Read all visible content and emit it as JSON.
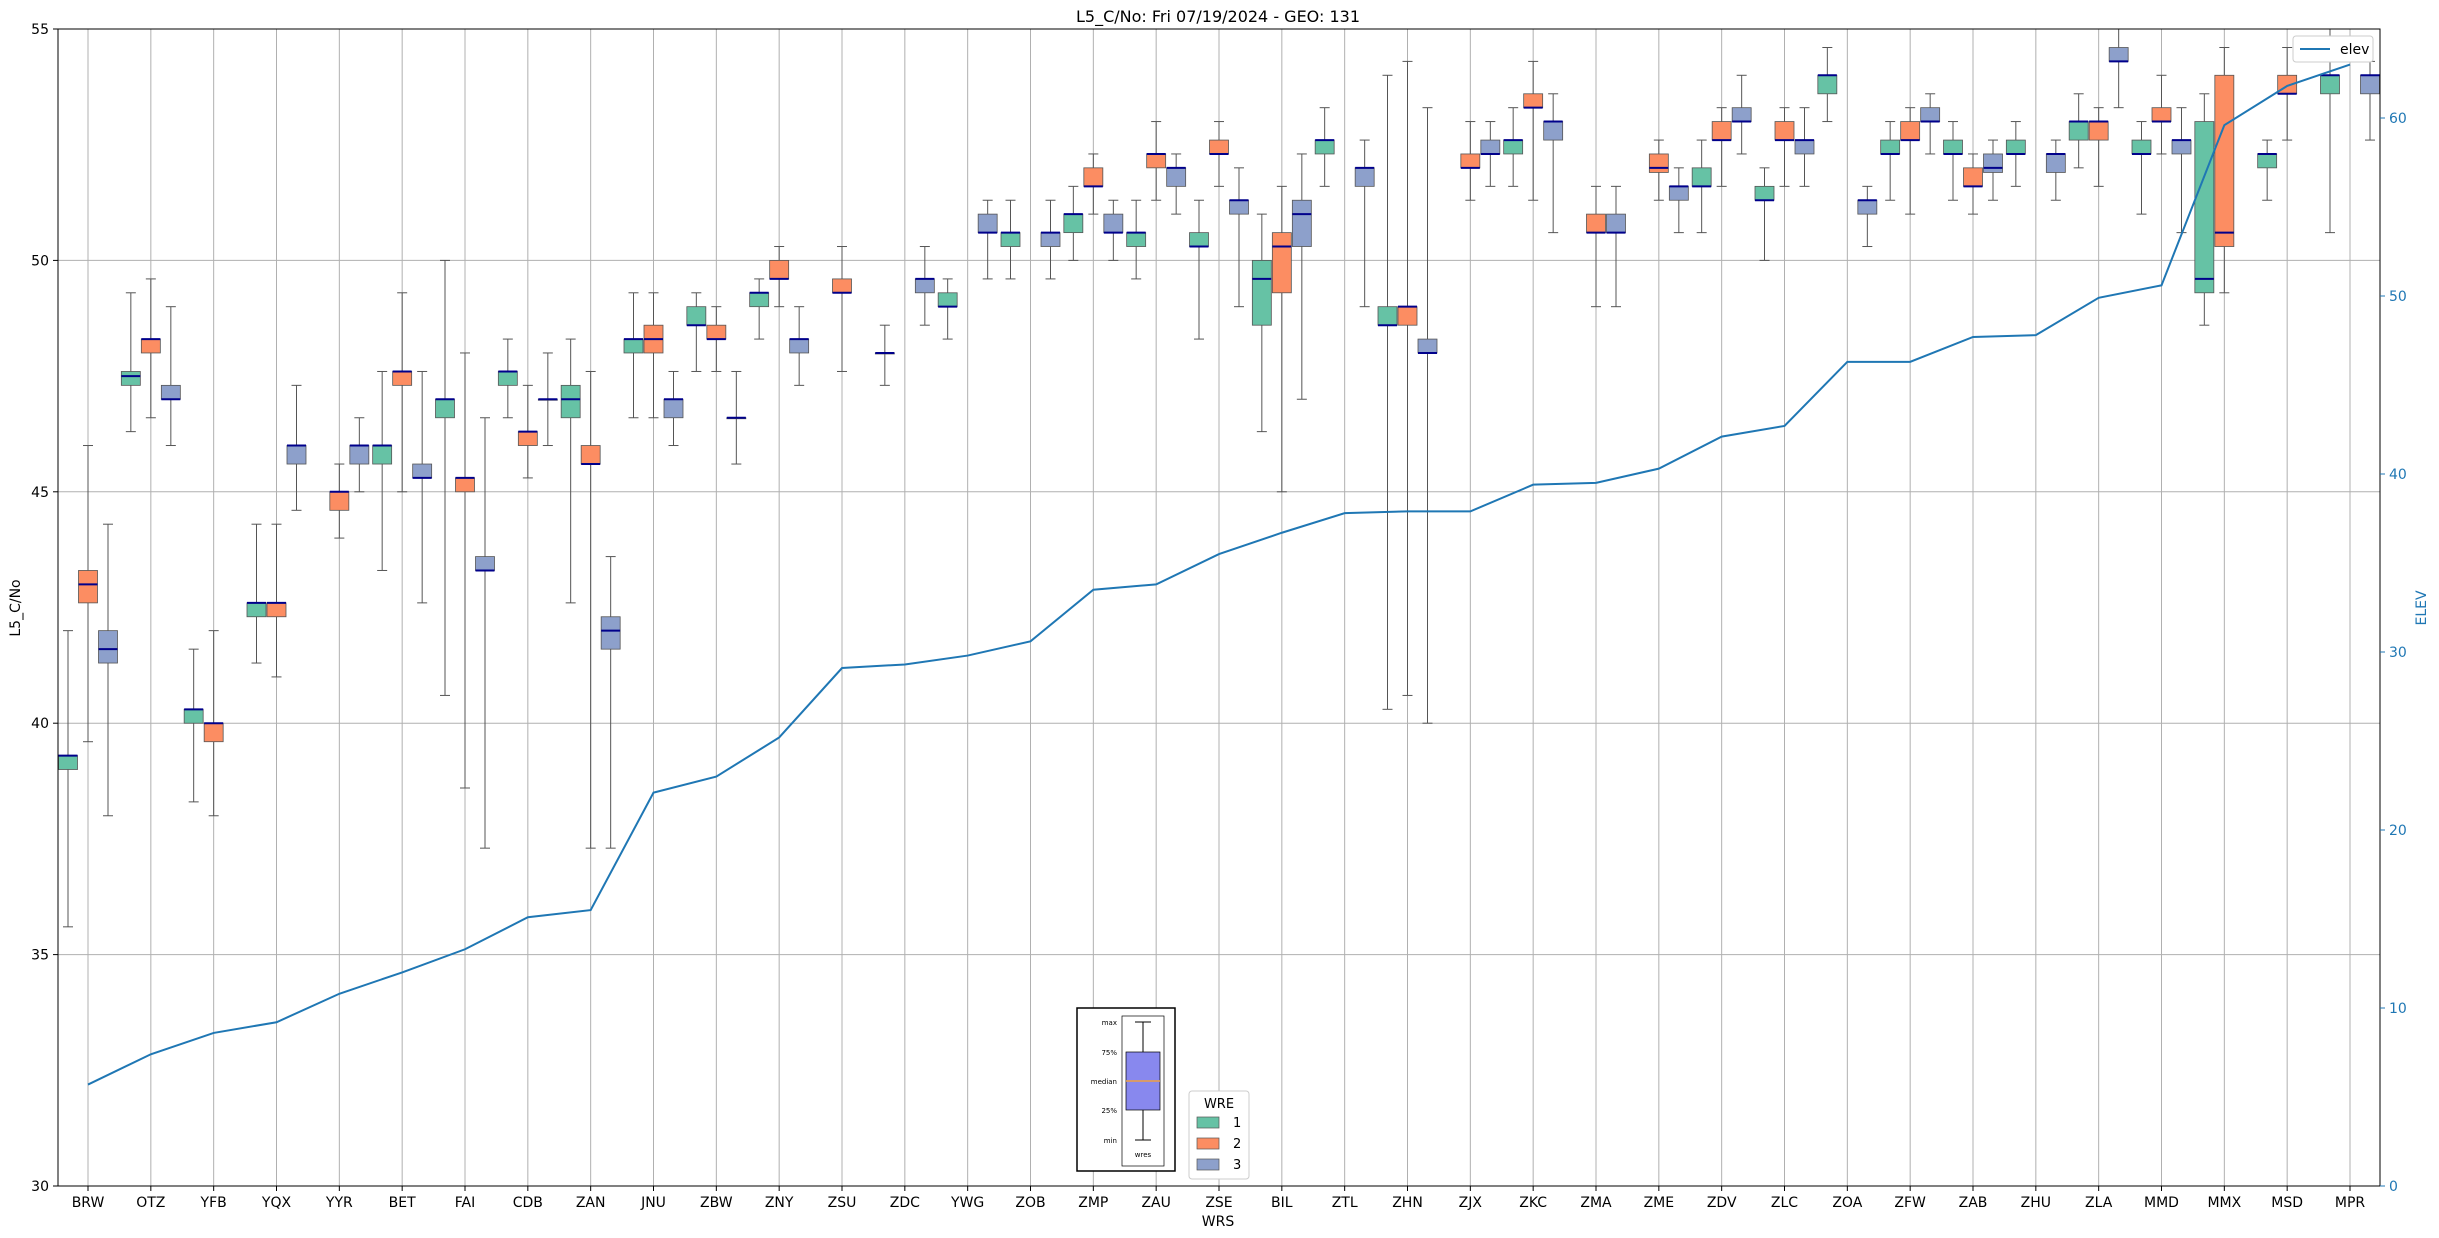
{
  "chart_data": {
    "type": "box",
    "title": "L5_C/No: Fri 07/19/2024 - GEO: 131",
    "xlabel": "WRS",
    "ylabel": "L5_C/No",
    "ylabel_right": "ELEV",
    "ylim": [
      30,
      55
    ],
    "ylim_right": [
      0,
      65
    ],
    "yticks": [
      "30",
      "35",
      "40",
      "45",
      "50",
      "55"
    ],
    "yticks_right": [
      "0",
      "10",
      "20",
      "30",
      "40",
      "50",
      "60"
    ],
    "grid": true,
    "colors": {
      "1": "#66c2a5",
      "2": "#fc8d62",
      "3": "#8da0cb",
      "elev": "#1f77b4",
      "median": "#00008b"
    },
    "categories": [
      "BRW",
      "OTZ",
      "YFB",
      "YQX",
      "YYR",
      "BET",
      "FAI",
      "CDB",
      "ZAN",
      "JNU",
      "ZBW",
      "ZNY",
      "ZSU",
      "ZDC",
      "YWG",
      "ZOB",
      "ZMP",
      "ZAU",
      "ZSE",
      "BIL",
      "ZTL",
      "ZHN",
      "ZJX",
      "ZKC",
      "ZMA",
      "ZME",
      "ZDV",
      "ZLC",
      "ZOA",
      "ZFW",
      "ZAB",
      "ZHU",
      "ZLA",
      "MMD",
      "MMX",
      "MSD",
      "MPR"
    ],
    "series": [
      {
        "name": "1",
        "boxes": [
          [
            35.6,
            39,
            39.3,
            39.3,
            42
          ],
          [
            46.3,
            47.3,
            47.5,
            47.6,
            49.3
          ],
          [
            38.3,
            40,
            40.3,
            40.3,
            41.6
          ],
          [
            41.3,
            42.3,
            42.6,
            42.6,
            44.3
          ],
          null,
          [
            43.3,
            45.6,
            46,
            46,
            47.6
          ],
          [
            40.6,
            46.6,
            47,
            47,
            50
          ],
          [
            46.6,
            47.3,
            47.6,
            47.6,
            48.3
          ],
          [
            42.6,
            46.6,
            47,
            47.3,
            48.3
          ],
          [
            46.6,
            48,
            48.3,
            48.3,
            49.3
          ],
          [
            47.6,
            48.6,
            48.6,
            49,
            49.3
          ],
          [
            48.3,
            49,
            49.3,
            49.3,
            49.6
          ],
          null,
          [
            47.3,
            48,
            48,
            48,
            48.6
          ],
          [
            48.3,
            49,
            49,
            49.3,
            49.6
          ],
          [
            49.6,
            50.3,
            50.6,
            50.6,
            51.3
          ],
          [
            50,
            50.6,
            51,
            51,
            51.6
          ],
          [
            49.6,
            50.3,
            50.6,
            50.6,
            51.3
          ],
          [
            48.3,
            50.3,
            50.3,
            50.6,
            51.3
          ],
          [
            46.3,
            48.6,
            49.6,
            50,
            51
          ],
          [
            51.6,
            52.3,
            52.6,
            52.6,
            53.3
          ],
          [
            40.3,
            48.6,
            48.6,
            49,
            54
          ],
          null,
          [
            51.6,
            52.3,
            52.6,
            52.6,
            53.3
          ],
          null,
          null,
          [
            50.6,
            51.6,
            51.6,
            52,
            52.6
          ],
          [
            50,
            51.3,
            51.3,
            51.6,
            52
          ],
          [
            53,
            53.6,
            54,
            54,
            54.6
          ],
          [
            51.3,
            52.3,
            52.3,
            52.6,
            53
          ],
          [
            51.3,
            52.3,
            52.3,
            52.6,
            53
          ],
          [
            51.6,
            52.3,
            52.3,
            52.6,
            53
          ],
          [
            52,
            52.6,
            53,
            53,
            53.6
          ],
          [
            51,
            52.3,
            52.3,
            52.6,
            53
          ],
          [
            48.6,
            49.3,
            49.6,
            53,
            53.6
          ],
          [
            51.3,
            52,
            52.3,
            52.3,
            52.6
          ],
          [
            50.6,
            53.6,
            54,
            54,
            55
          ]
        ]
      },
      {
        "name": "2",
        "boxes": [
          [
            39.6,
            42.6,
            43,
            43.3,
            46
          ],
          [
            46.6,
            48,
            48.3,
            48.3,
            49.6
          ],
          [
            38,
            39.6,
            40,
            40,
            42
          ],
          [
            41,
            42.3,
            42.6,
            42.6,
            44.3
          ],
          [
            44,
            44.6,
            45,
            45,
            45.6
          ],
          [
            45,
            47.3,
            47.6,
            47.6,
            49.3
          ],
          [
            38.6,
            45,
            45.3,
            45.3,
            48
          ],
          [
            45.3,
            46,
            46.3,
            46.3,
            47.3
          ],
          [
            37.3,
            45.6,
            45.6,
            46,
            47.6
          ],
          [
            46.6,
            48,
            48.3,
            48.6,
            49.3
          ],
          [
            47.6,
            48.3,
            48.3,
            48.6,
            49
          ],
          [
            49,
            49.6,
            49.6,
            50,
            50.3
          ],
          [
            47.6,
            49.3,
            49.3,
            49.6,
            50.3
          ],
          null,
          null,
          null,
          [
            51,
            51.6,
            51.6,
            52,
            52.3
          ],
          [
            51.3,
            52,
            52.3,
            52.3,
            53
          ],
          [
            51.6,
            52.3,
            52.3,
            52.6,
            53
          ],
          [
            45,
            49.3,
            50.3,
            50.6,
            51.6
          ],
          null,
          [
            40.6,
            48.6,
            49,
            49,
            54.3
          ],
          [
            51.3,
            52,
            52,
            52.3,
            53
          ],
          [
            51.3,
            53.3,
            53.3,
            53.6,
            54.3
          ],
          [
            49,
            50.6,
            50.6,
            51,
            51.6
          ],
          [
            51.3,
            51.9,
            52,
            52.3,
            52.6
          ],
          [
            51.6,
            52.6,
            52.6,
            53,
            53.3
          ],
          [
            51.6,
            52.6,
            52.6,
            53,
            53.3
          ],
          null,
          [
            51,
            52.6,
            52.6,
            53,
            53.3
          ],
          [
            51,
            51.6,
            51.6,
            52,
            52.3
          ],
          null,
          [
            51.6,
            52.6,
            53,
            53,
            53.3
          ],
          [
            52.3,
            53,
            53,
            53.3,
            54
          ],
          [
            49.3,
            50.3,
            50.6,
            54,
            54.6
          ],
          [
            52.6,
            53.6,
            53.6,
            54,
            54.6
          ],
          null
        ]
      },
      {
        "name": "3",
        "boxes": [
          [
            38,
            41.3,
            41.6,
            42,
            44.3
          ],
          [
            46,
            47,
            47,
            47.3,
            49
          ],
          [
            null
          ],
          [
            44.6,
            45.6,
            46,
            46,
            47.3
          ],
          [
            45,
            45.6,
            46,
            46,
            46.6
          ],
          [
            42.6,
            45.3,
            45.3,
            45.6,
            47.6
          ],
          [
            37.3,
            43.3,
            43.3,
            43.6,
            46.6
          ],
          [
            46,
            47,
            47,
            47,
            48
          ],
          [
            37.3,
            41.6,
            42,
            42.3,
            43.6
          ],
          [
            46,
            46.6,
            47,
            47,
            47.6
          ],
          [
            45.6,
            46.6,
            46.6,
            46.6,
            47.6
          ],
          [
            47.3,
            48,
            48.3,
            48.3,
            49
          ],
          null,
          [
            48.6,
            49.3,
            49.6,
            49.6,
            50.3
          ],
          [
            49.6,
            50.6,
            50.6,
            51,
            51.3
          ],
          [
            49.6,
            50.3,
            50.6,
            50.6,
            51.3
          ],
          [
            50,
            50.6,
            50.6,
            51,
            51.3
          ],
          [
            51,
            51.6,
            52,
            52,
            52.3
          ],
          [
            49,
            51,
            51.3,
            51.3,
            52
          ],
          [
            47,
            50.3,
            51,
            51.3,
            52.3
          ],
          [
            49,
            51.6,
            52,
            52,
            52.6
          ],
          [
            40,
            48,
            48,
            48.3,
            53.3
          ],
          [
            51.6,
            52.3,
            52.3,
            52.6,
            53
          ],
          [
            50.6,
            52.6,
            53,
            53,
            53.6
          ],
          [
            49,
            50.6,
            50.6,
            51,
            51.6
          ],
          [
            50.6,
            51.3,
            51.6,
            51.6,
            52
          ],
          [
            52.3,
            53,
            53,
            53.3,
            54
          ],
          [
            51.6,
            52.3,
            52.6,
            52.6,
            53.3
          ],
          [
            50.3,
            51,
            51.3,
            51.3,
            51.6
          ],
          [
            52.3,
            53,
            53,
            53.3,
            53.6
          ],
          [
            51.3,
            51.9,
            52,
            52.3,
            52.6
          ],
          [
            51.3,
            51.9,
            52.3,
            52.3,
            52.6
          ],
          [
            53.3,
            54.3,
            54.3,
            54.6,
            55
          ],
          [
            50.6,
            52.3,
            52.6,
            52.6,
            53.3
          ],
          null,
          null,
          [
            52.6,
            53.6,
            54,
            54,
            54.3
          ]
        ]
      },
      {
        "name": "elev",
        "values": [
          5.7,
          7.4,
          8.6,
          9.2,
          10.8,
          12.0,
          13.3,
          15.1,
          15.5,
          22.1,
          23.0,
          25.2,
          29.1,
          29.3,
          29.8,
          30.6,
          33.5,
          33.8,
          35.5,
          36.7,
          37.8,
          37.9,
          37.9,
          39.4,
          39.5,
          40.3,
          42.1,
          42.7,
          46.3,
          46.3,
          47.7,
          47.8,
          49.9,
          50.6,
          59.6,
          61.8,
          63.0
        ]
      }
    ],
    "legend_box": {
      "title": "WRE",
      "labels": [
        "1",
        "2",
        "3"
      ],
      "position": "bottom-center"
    },
    "legend_line": {
      "label": "elev",
      "position": "top-right"
    },
    "explain_labels": [
      "max",
      "75%",
      "median",
      "25%",
      "min",
      "wres"
    ]
  }
}
